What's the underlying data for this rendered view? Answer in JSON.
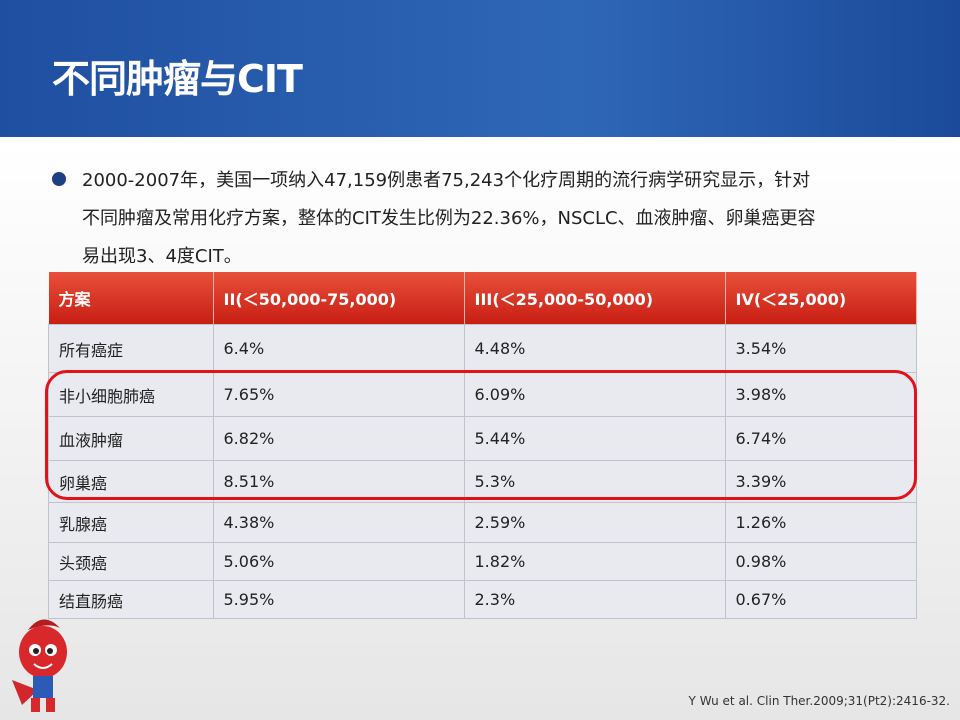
{
  "header": {
    "title": "不同肿瘤与CIT"
  },
  "bullet": {
    "lines": [
      "2000-2007年，美国一项纳入47,159例患者75,243个化疗周期的流行病学研究显示，针对",
      "不同肿瘤及常用化疗方案，整体的CIT发生比例为22.36%，NSCLC、血液肿瘤、卵巢癌更容",
      "易出现3、4度CIT。"
    ]
  },
  "table": {
    "columns": [
      "方案",
      "II(＜50,000-75,000)",
      "III(＜25,000-50,000)",
      "IV(＜25,000)"
    ],
    "rows": [
      [
        "所有癌症",
        "6.4%",
        "4.48%",
        "3.54%"
      ],
      [
        "非小细胞肺癌",
        "7.65%",
        "6.09%",
        "3.98%"
      ],
      [
        "血液肿瘤",
        "6.82%",
        "5.44%",
        "6.74%"
      ],
      [
        "卵巢癌",
        "8.51%",
        "5.3%",
        "3.39%"
      ],
      [
        "乳腺癌",
        "4.38%",
        "2.59%",
        "1.26%"
      ],
      [
        "头颈癌",
        "5.06%",
        "1.82%",
        "0.98%"
      ],
      [
        "结直肠癌",
        "5.95%",
        "2.3%",
        "0.67%"
      ]
    ]
  },
  "citation": "Y Wu et al. Clin Ther.2009;31(Pt2):2416-32."
}
